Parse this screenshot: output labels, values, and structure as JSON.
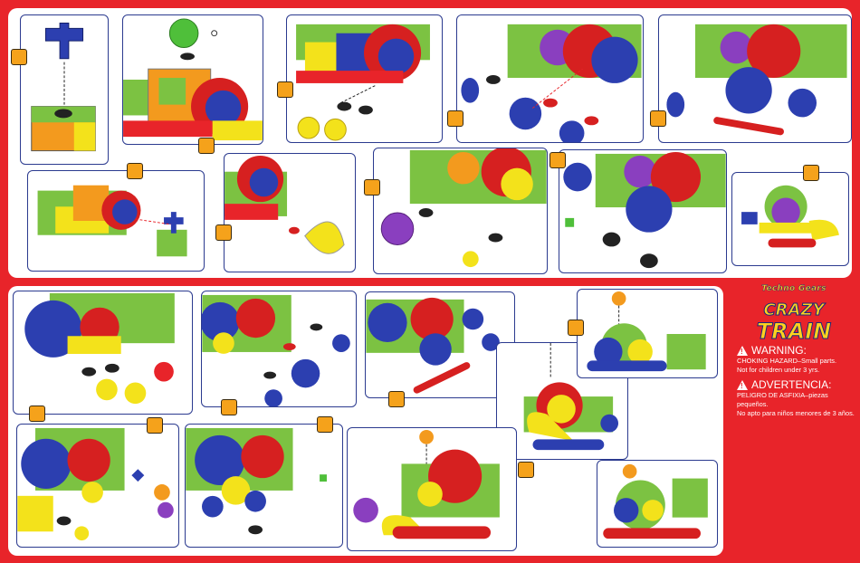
{
  "brand": {
    "tagline": "Techno Gears",
    "logo_line1": "CRAZY",
    "logo_line2": "TRAIN"
  },
  "warning_en": {
    "title": "WARNING:",
    "line1": "CHOKING HAZARD–Small parts.",
    "line2": "Not for children under 3 yrs."
  },
  "warning_es": {
    "title": "ADVERTENCIA:",
    "line1": "PELIGRO DE ASFIXIA–piezas pequeños.",
    "line2": "No apto para niños menores de 3 años."
  },
  "colors": {
    "background": "#e8242a",
    "panel_border": "#2b3a8f",
    "step_badge": "#f5a21b",
    "warning_text": "#ffffff"
  },
  "icons": {
    "warning": "warning-triangle-icon"
  }
}
